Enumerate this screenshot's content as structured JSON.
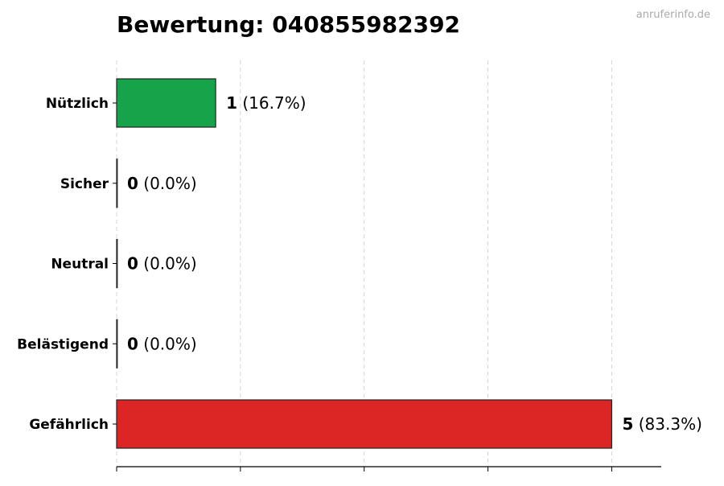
{
  "chart_data": {
    "type": "bar",
    "orientation": "horizontal",
    "title": "Bewertung: 040855982392",
    "watermark": "anruferinfo.de",
    "categories": [
      "Nützlich",
      "Sicher",
      "Neutral",
      "Belästigend",
      "Gefährlich"
    ],
    "values": [
      1,
      0,
      0,
      0,
      5
    ],
    "percent_labels": [
      "(16.7%)",
      "(0.0%)",
      "(0.0%)",
      "(0.0%)",
      "(83.3%)"
    ],
    "colors": [
      "#16a34a",
      "#16a34a",
      "#9ca3af",
      "#f59e0b",
      "#dc2626"
    ],
    "xlim": [
      0,
      5.5
    ],
    "xticks": [
      0,
      1.25,
      2.5,
      3.75,
      5
    ],
    "grid": "x, dashed",
    "xlabel": "",
    "ylabel": ""
  }
}
